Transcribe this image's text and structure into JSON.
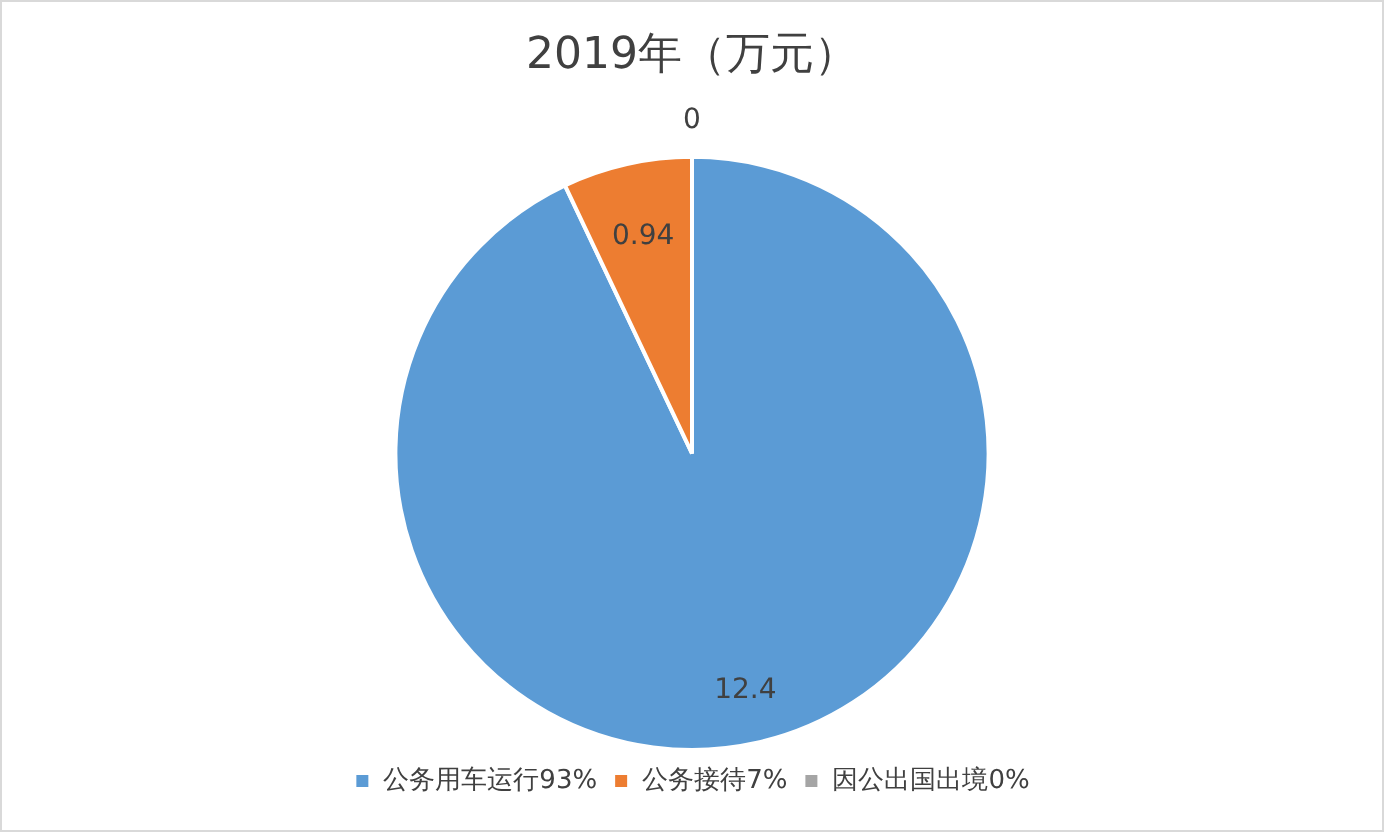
{
  "chart_data": {
    "type": "pie",
    "title": "2019年（万元）",
    "categories": [
      "公务用车运行93%",
      "公务接待7%",
      "因公出国出境0%"
    ],
    "values": [
      12.4,
      0.94,
      0
    ],
    "colors": [
      "#5b9bd5",
      "#ed7d31",
      "#a5a5a5"
    ],
    "value_labels": [
      "12.4",
      "0.94",
      "0"
    ],
    "legend": "bottom"
  }
}
